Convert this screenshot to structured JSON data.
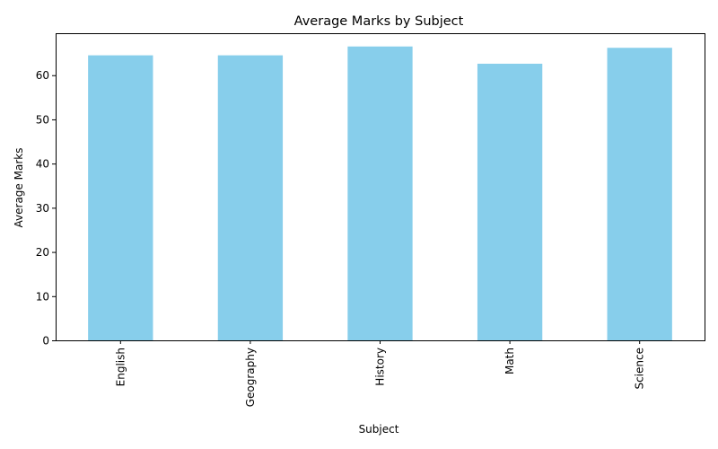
{
  "chart_data": {
    "type": "bar",
    "title": "Average Marks by Subject",
    "xlabel": "Subject",
    "ylabel": "Average Marks",
    "categories": [
      "English",
      "Geography",
      "History",
      "Math",
      "Science"
    ],
    "values": [
      64.5,
      64.5,
      66.5,
      62.6,
      66.2
    ],
    "ylim": [
      0,
      69.5
    ],
    "yticks": [
      0,
      10,
      20,
      30,
      40,
      50,
      60
    ],
    "bar_color": "#87ceeb",
    "grid": false,
    "legend": "none",
    "x_tick_rotation": "vertical"
  }
}
